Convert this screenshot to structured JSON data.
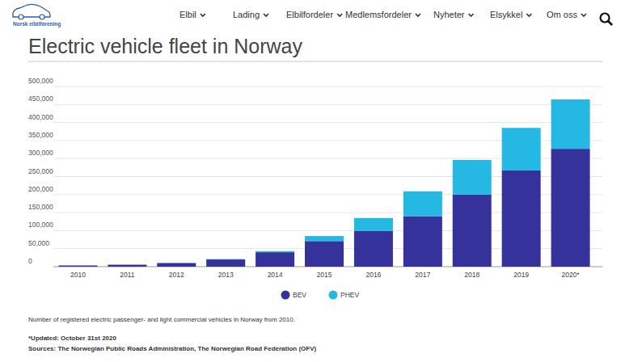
{
  "header": {
    "logo_text": "Norsk elbilforening",
    "nav": [
      "Elbil",
      "Lading",
      "Elbilfordeler",
      "Medlemsfordeler",
      "Nyheter",
      "Elsykkel",
      "Om oss"
    ]
  },
  "chart_data": {
    "type": "bar",
    "title": "Electric vehicle fleet in Norway",
    "categories": [
      "2010",
      "2011",
      "2012",
      "2013",
      "2014",
      "2015",
      "2016",
      "2017",
      "2018",
      "2019",
      "2020*"
    ],
    "series": [
      {
        "name": "BEV",
        "color": "#35329b",
        "values": [
          3350,
          5400,
          10000,
          20000,
          40000,
          71000,
          99000,
          140000,
          200000,
          267000,
          327000
        ]
      },
      {
        "name": "PHEV",
        "color": "#24b8e3",
        "values": [
          0,
          100,
          400,
          1000,
          3000,
          14000,
          36000,
          69000,
          96000,
          118000,
          137000
        ]
      }
    ],
    "stacked": true,
    "ylim": [
      0,
      500000
    ],
    "yticks": [
      0,
      {
        "value": 50000,
        "label": "50,000"
      },
      {
        "value": 100000,
        "label": "100,000"
      },
      {
        "value": 150000,
        "label": "150,000"
      },
      {
        "value": 200000,
        "label": "200,000"
      },
      {
        "value": 250000,
        "label": "250,000"
      },
      {
        "value": 300000,
        "label": "300,000"
      },
      {
        "value": 350000,
        "label": "350,000"
      },
      {
        "value": 400000,
        "label": "400,000"
      },
      {
        "value": 450000,
        "label": "450,000"
      },
      {
        "value": 500000,
        "label": "500,000"
      }
    ],
    "grid": true,
    "legend": "bottom",
    "annotations": [
      "Number of registered electric passenger- and light commercial vehicles in Norway from 2010.",
      "*Updated: October 31st 2020",
      "Sources: The Norwegian Public Roads Administration, The Norwegian Road Federation (OFV)"
    ]
  }
}
